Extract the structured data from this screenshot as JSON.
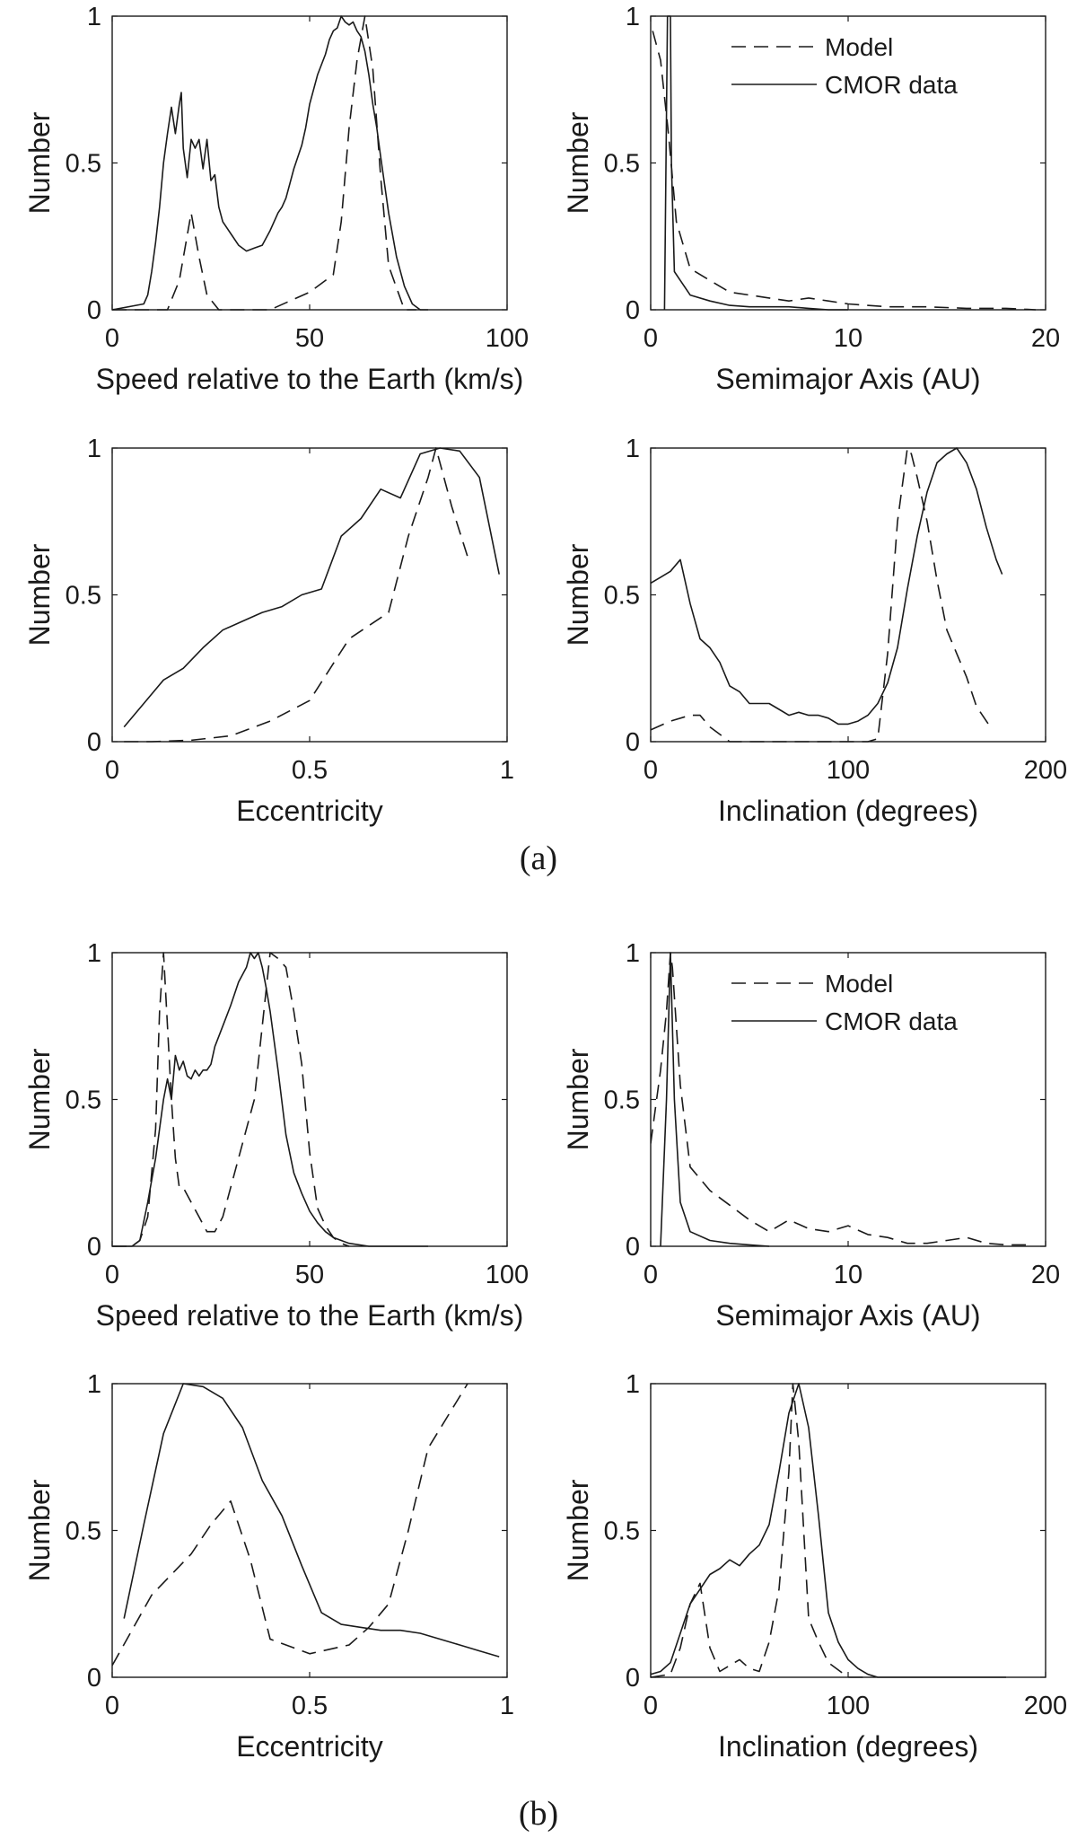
{
  "captions": [
    "(a)",
    "(b)"
  ],
  "legend": {
    "model": "Model",
    "cmor": "CMOR data"
  },
  "chart_data": [
    {
      "id": "a-speed",
      "type": "line",
      "xlabel": "Speed relative to the Earth (km/s)",
      "ylabel": "Number",
      "xlim": [
        0,
        100
      ],
      "ylim": [
        0,
        1
      ],
      "xticks": [
        0,
        50,
        100
      ],
      "yticks": [
        0,
        0.5,
        1
      ],
      "legend": false,
      "series": [
        {
          "name": "Model",
          "style": "dashed",
          "x": [
            0,
            10,
            14,
            17,
            20,
            22,
            24,
            27,
            30,
            40,
            50,
            56,
            58,
            60,
            62,
            64,
            66,
            68,
            70,
            74,
            77
          ],
          "y": [
            0,
            0,
            0,
            0.1,
            0.33,
            0.18,
            0.05,
            0,
            0,
            0,
            0.06,
            0.12,
            0.3,
            0.62,
            0.85,
            1,
            0.82,
            0.45,
            0.15,
            0,
            0
          ]
        },
        {
          "name": "CMOR data",
          "style": "solid",
          "x": [
            0,
            8,
            9,
            10,
            11,
            12,
            13,
            14,
            15,
            16,
            17,
            17.5,
            18,
            19,
            20,
            21,
            22,
            23,
            24,
            25,
            26,
            27,
            28,
            30,
            32,
            34,
            36,
            38,
            40,
            42,
            43,
            44,
            45,
            46,
            47,
            48,
            49,
            50,
            52,
            54,
            55,
            56,
            57,
            58,
            59,
            60,
            61,
            62,
            63,
            64,
            65,
            66,
            67,
            68,
            70,
            72,
            74,
            76,
            78,
            80
          ],
          "y": [
            0,
            0.02,
            0.05,
            0.13,
            0.23,
            0.35,
            0.5,
            0.6,
            0.69,
            0.6,
            0.7,
            0.74,
            0.55,
            0.45,
            0.58,
            0.55,
            0.58,
            0.48,
            0.58,
            0.44,
            0.46,
            0.35,
            0.3,
            0.26,
            0.22,
            0.2,
            0.21,
            0.22,
            0.27,
            0.33,
            0.35,
            0.38,
            0.43,
            0.48,
            0.52,
            0.56,
            0.62,
            0.7,
            0.8,
            0.87,
            0.92,
            0.95,
            0.96,
            1,
            0.98,
            0.97,
            0.98,
            0.95,
            0.93,
            0.88,
            0.8,
            0.7,
            0.62,
            0.52,
            0.33,
            0.18,
            0.08,
            0.02,
            0,
            0
          ]
        }
      ]
    },
    {
      "id": "a-semimajor",
      "type": "line",
      "xlabel": "Semimajor Axis (AU)",
      "ylabel": "Number",
      "xlim": [
        0,
        20
      ],
      "ylim": [
        0,
        1
      ],
      "xticks": [
        0,
        10,
        20
      ],
      "yticks": [
        0,
        0.5,
        1
      ],
      "legend": true,
      "series": [
        {
          "name": "Model",
          "style": "dashed",
          "x": [
            0.1,
            0.5,
            0.9,
            1.3,
            2,
            3,
            4,
            5,
            6,
            7,
            8,
            9,
            10,
            12,
            14,
            16,
            18,
            19.5
          ],
          "y": [
            0.95,
            0.85,
            0.6,
            0.3,
            0.14,
            0.1,
            0.06,
            0.05,
            0.04,
            0.03,
            0.04,
            0.03,
            0.02,
            0.01,
            0.01,
            0.005,
            0.005,
            0
          ]
        },
        {
          "name": "CMOR data",
          "style": "solid",
          "x": [
            0.7,
            0.85,
            1.0,
            1.05,
            1.2,
            1.5,
            2,
            3,
            4,
            5,
            6,
            7,
            8,
            9,
            10
          ],
          "y": [
            0,
            1,
            1,
            0.5,
            0.13,
            0.1,
            0.05,
            0.03,
            0.015,
            0.01,
            0.01,
            0.01,
            0.005,
            0,
            0
          ]
        }
      ]
    },
    {
      "id": "a-eccentricity",
      "type": "line",
      "xlabel": "Eccentricity",
      "ylabel": "Number",
      "xlim": [
        0,
        1
      ],
      "ylim": [
        0,
        1
      ],
      "xticks": [
        0,
        0.5,
        1
      ],
      "yticks": [
        0,
        0.5,
        1
      ],
      "legend": false,
      "series": [
        {
          "name": "Model",
          "style": "dashed",
          "x": [
            0.03,
            0.1,
            0.2,
            0.3,
            0.4,
            0.5,
            0.6,
            0.7,
            0.75,
            0.8,
            0.82,
            0.86,
            0.9
          ],
          "y": [
            0,
            0,
            0.005,
            0.02,
            0.07,
            0.14,
            0.35,
            0.44,
            0.7,
            0.9,
            1,
            0.8,
            0.63
          ]
        },
        {
          "name": "CMOR data",
          "style": "solid",
          "x": [
            0.03,
            0.08,
            0.13,
            0.18,
            0.23,
            0.28,
            0.33,
            0.38,
            0.43,
            0.48,
            0.53,
            0.58,
            0.63,
            0.68,
            0.73,
            0.78,
            0.83,
            0.88,
            0.93,
            0.98
          ],
          "y": [
            0.05,
            0.13,
            0.21,
            0.25,
            0.32,
            0.38,
            0.41,
            0.44,
            0.46,
            0.5,
            0.52,
            0.7,
            0.76,
            0.86,
            0.83,
            0.98,
            1,
            0.99,
            0.9,
            0.57
          ]
        }
      ]
    },
    {
      "id": "a-inclination",
      "type": "line",
      "xlabel": "Inclination (degrees)",
      "ylabel": "Number",
      "xlim": [
        0,
        200
      ],
      "ylim": [
        0,
        1
      ],
      "xticks": [
        0,
        100,
        200
      ],
      "yticks": [
        0,
        0.5,
        1
      ],
      "legend": false,
      "series": [
        {
          "name": "Model",
          "style": "dashed",
          "x": [
            0,
            10,
            20,
            25,
            30,
            40,
            50,
            60,
            80,
            100,
            110,
            115,
            120,
            125,
            130,
            132,
            135,
            140,
            145,
            150,
            155,
            160,
            165,
            172
          ],
          "y": [
            0.04,
            0.07,
            0.09,
            0.09,
            0.05,
            0,
            0,
            0,
            0,
            0,
            0,
            0.01,
            0.3,
            0.75,
            1,
            0.98,
            0.9,
            0.75,
            0.55,
            0.38,
            0.3,
            0.22,
            0.12,
            0.05
          ]
        },
        {
          "name": "CMOR data",
          "style": "solid",
          "x": [
            0,
            5,
            10,
            15,
            20,
            25,
            30,
            35,
            40,
            45,
            50,
            55,
            60,
            65,
            70,
            75,
            80,
            85,
            90,
            95,
            100,
            105,
            110,
            115,
            120,
            125,
            130,
            135,
            140,
            145,
            150,
            155,
            160,
            165,
            170,
            175,
            178
          ],
          "y": [
            0.54,
            0.56,
            0.58,
            0.62,
            0.47,
            0.35,
            0.32,
            0.27,
            0.19,
            0.17,
            0.13,
            0.13,
            0.13,
            0.11,
            0.09,
            0.1,
            0.09,
            0.09,
            0.08,
            0.06,
            0.06,
            0.07,
            0.09,
            0.13,
            0.2,
            0.32,
            0.52,
            0.7,
            0.85,
            0.95,
            0.98,
            1,
            0.95,
            0.86,
            0.73,
            0.62,
            0.57
          ]
        }
      ]
    },
    {
      "id": "b-speed",
      "type": "line",
      "xlabel": "Speed relative to the Earth (km/s)",
      "ylabel": "Number",
      "xlim": [
        0,
        100
      ],
      "ylim": [
        0,
        1
      ],
      "xticks": [
        0,
        50,
        100
      ],
      "yticks": [
        0,
        0.5,
        1
      ],
      "legend": false,
      "series": [
        {
          "name": "Model",
          "style": "dashed",
          "x": [
            0,
            5,
            7,
            9,
            11,
            12,
            13,
            14,
            15,
            16,
            17,
            18,
            20,
            22,
            24,
            26,
            28,
            30,
            32,
            34,
            36,
            38,
            40,
            42,
            44,
            46,
            48,
            50,
            52,
            54,
            56,
            58,
            60
          ],
          "y": [
            0,
            0,
            0.02,
            0.1,
            0.4,
            0.8,
            1,
            0.75,
            0.5,
            0.3,
            0.2,
            0.2,
            0.15,
            0.1,
            0.05,
            0.05,
            0.1,
            0.2,
            0.3,
            0.4,
            0.5,
            0.75,
            1,
            0.98,
            0.95,
            0.8,
            0.62,
            0.32,
            0.13,
            0.07,
            0.03,
            0.01,
            0
          ]
        },
        {
          "name": "CMOR data",
          "style": "solid",
          "x": [
            0,
            5,
            7,
            9,
            11,
            12,
            13,
            14,
            15,
            16,
            17,
            18,
            19,
            20,
            21,
            22,
            23,
            24,
            25,
            26,
            28,
            30,
            32,
            34,
            35,
            36,
            37,
            38,
            39,
            40,
            42,
            44,
            46,
            48,
            50,
            52,
            54,
            56,
            58,
            60,
            65,
            70,
            80
          ],
          "y": [
            0,
            0,
            0.02,
            0.15,
            0.3,
            0.4,
            0.5,
            0.57,
            0.5,
            0.65,
            0.6,
            0.63,
            0.58,
            0.57,
            0.6,
            0.58,
            0.6,
            0.6,
            0.62,
            0.68,
            0.75,
            0.82,
            0.9,
            0.95,
            1,
            0.98,
            1,
            0.95,
            0.88,
            0.8,
            0.6,
            0.38,
            0.25,
            0.18,
            0.12,
            0.08,
            0.05,
            0.03,
            0.02,
            0.01,
            0,
            0,
            0
          ]
        }
      ]
    },
    {
      "id": "b-semimajor",
      "type": "line",
      "xlabel": "Semimajor Axis (AU)",
      "ylabel": "Number",
      "xlim": [
        0,
        20
      ],
      "ylim": [
        0,
        1
      ],
      "xticks": [
        0,
        10,
        20
      ],
      "yticks": [
        0,
        0.5,
        1
      ],
      "legend": true,
      "series": [
        {
          "name": "Model",
          "style": "dashed",
          "x": [
            0,
            0.5,
            0.8,
            1.0,
            1.1,
            1.5,
            2,
            3,
            4,
            5,
            6,
            7,
            8,
            9,
            10,
            11,
            12,
            13,
            14,
            15,
            16,
            17,
            18,
            19
          ],
          "y": [
            0.35,
            0.6,
            0.8,
            1,
            0.95,
            0.55,
            0.27,
            0.19,
            0.14,
            0.09,
            0.05,
            0.09,
            0.06,
            0.05,
            0.07,
            0.04,
            0.03,
            0.01,
            0.01,
            0.02,
            0.03,
            0.01,
            0.005,
            0.005
          ]
        },
        {
          "name": "CMOR data",
          "style": "solid",
          "x": [
            0.5,
            0.8,
            1.0,
            1.2,
            1.5,
            2,
            3,
            4,
            5,
            6
          ],
          "y": [
            0,
            0.5,
            1,
            0.5,
            0.15,
            0.05,
            0.02,
            0.01,
            0.005,
            0
          ]
        }
      ]
    },
    {
      "id": "b-eccentricity",
      "type": "line",
      "xlabel": "Eccentricity",
      "ylabel": "Number",
      "xlim": [
        0,
        1
      ],
      "ylim": [
        0,
        1
      ],
      "xticks": [
        0,
        0.5,
        1
      ],
      "yticks": [
        0,
        0.5,
        1
      ],
      "legend": false,
      "series": [
        {
          "name": "Model",
          "style": "dashed",
          "x": [
            0,
            0.1,
            0.2,
            0.25,
            0.3,
            0.35,
            0.4,
            0.5,
            0.6,
            0.65,
            0.7,
            0.75,
            0.8,
            0.9
          ],
          "y": [
            0.04,
            0.28,
            0.42,
            0.52,
            0.6,
            0.4,
            0.13,
            0.08,
            0.11,
            0.17,
            0.25,
            0.5,
            0.78,
            1
          ]
        },
        {
          "name": "CMOR data",
          "style": "solid",
          "x": [
            0.03,
            0.08,
            0.13,
            0.18,
            0.23,
            0.28,
            0.33,
            0.38,
            0.43,
            0.48,
            0.53,
            0.58,
            0.63,
            0.68,
            0.73,
            0.78,
            0.83,
            0.88,
            0.93,
            0.98
          ],
          "y": [
            0.2,
            0.52,
            0.83,
            1,
            0.99,
            0.95,
            0.85,
            0.67,
            0.55,
            0.38,
            0.22,
            0.18,
            0.17,
            0.16,
            0.16,
            0.15,
            0.13,
            0.11,
            0.09,
            0.07
          ]
        }
      ]
    },
    {
      "id": "b-inclination",
      "type": "line",
      "xlabel": "Inclination (degrees)",
      "ylabel": "Number",
      "xlim": [
        0,
        200
      ],
      "ylim": [
        0,
        1
      ],
      "xticks": [
        0,
        100,
        200
      ],
      "yticks": [
        0,
        0.5,
        1
      ],
      "legend": false,
      "series": [
        {
          "name": "Model",
          "style": "dashed",
          "x": [
            0,
            10,
            15,
            20,
            25,
            30,
            35,
            40,
            45,
            50,
            55,
            60,
            65,
            70,
            72,
            75,
            80,
            85,
            90,
            100,
            110
          ],
          "y": [
            0,
            0.01,
            0.1,
            0.25,
            0.32,
            0.1,
            0.02,
            0.04,
            0.06,
            0.03,
            0.02,
            0.12,
            0.3,
            0.7,
            1,
            0.8,
            0.2,
            0.12,
            0.05,
            0,
            0
          ]
        },
        {
          "name": "CMOR data",
          "style": "solid",
          "x": [
            0,
            5,
            10,
            15,
            20,
            25,
            30,
            35,
            40,
            45,
            50,
            55,
            60,
            65,
            70,
            75,
            80,
            85,
            90,
            95,
            100,
            105,
            110,
            115,
            120,
            140,
            160,
            180
          ],
          "y": [
            0.01,
            0.02,
            0.05,
            0.15,
            0.25,
            0.3,
            0.35,
            0.37,
            0.4,
            0.38,
            0.42,
            0.45,
            0.52,
            0.7,
            0.9,
            1,
            0.85,
            0.55,
            0.22,
            0.12,
            0.06,
            0.03,
            0.01,
            0,
            0,
            0,
            0,
            0
          ]
        }
      ]
    }
  ]
}
